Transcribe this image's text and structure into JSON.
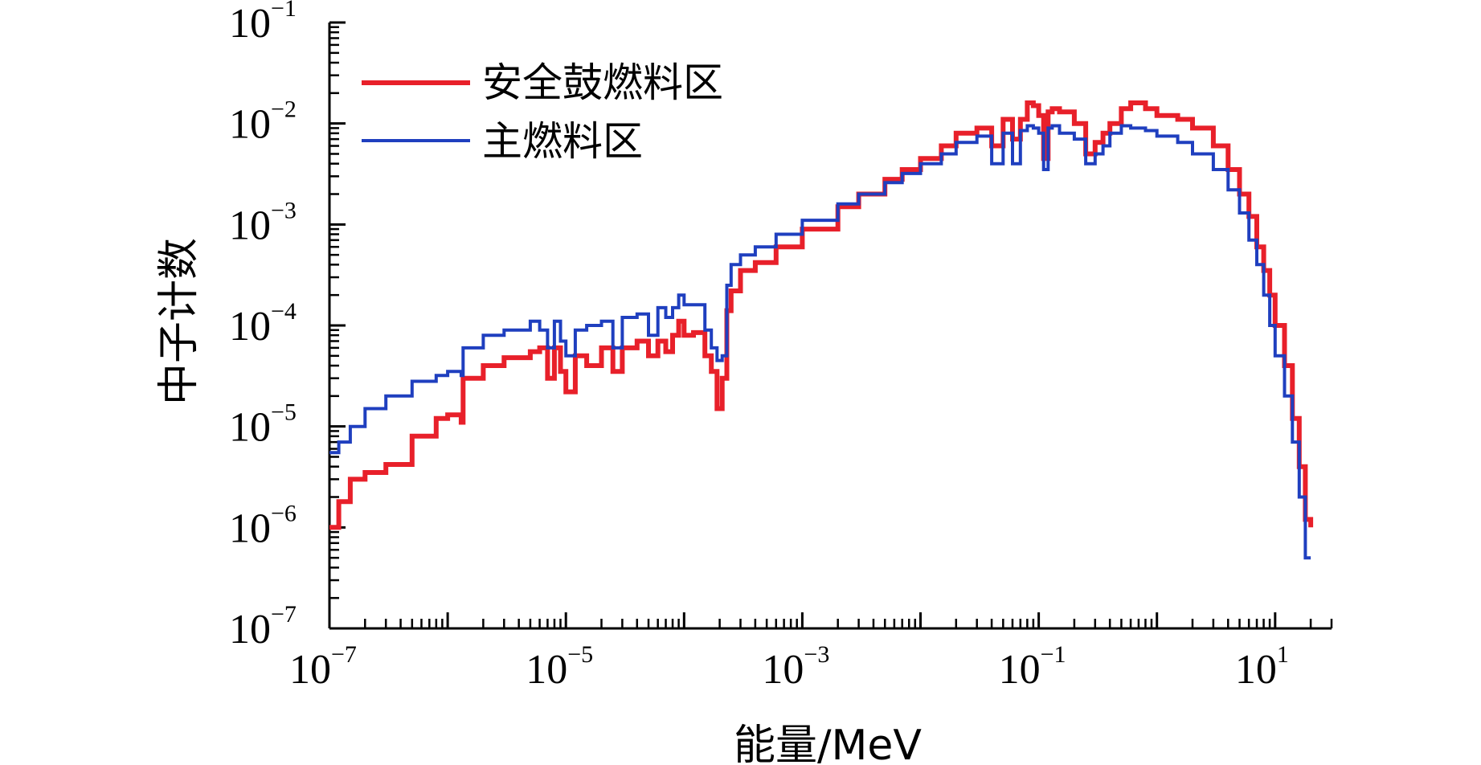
{
  "chart_data": {
    "type": "line",
    "xlabel": "能量/MeV",
    "ylabel": "中子计数",
    "xscale": "log",
    "yscale": "log",
    "xlim": [
      1e-07,
      30
    ],
    "ylim": [
      1e-07,
      0.1
    ],
    "grid": false,
    "legend_position": "top-left",
    "x_ticks": [
      {
        "base": "10",
        "exp": "−7",
        "value": 1e-07
      },
      {
        "base": "10",
        "exp": "−5",
        "value": 1e-05
      },
      {
        "base": "10",
        "exp": "−3",
        "value": 0.001
      },
      {
        "base": "10",
        "exp": "−1",
        "value": 0.1
      },
      {
        "base": "10",
        "exp": "1",
        "value": 10
      }
    ],
    "y_ticks": [
      {
        "base": "10",
        "exp": "−7",
        "value": 1e-07
      },
      {
        "base": "10",
        "exp": "−6",
        "value": 1e-06
      },
      {
        "base": "10",
        "exp": "−5",
        "value": 1e-05
      },
      {
        "base": "10",
        "exp": "−4",
        "value": 0.0001
      },
      {
        "base": "10",
        "exp": "−3",
        "value": 0.001
      },
      {
        "base": "10",
        "exp": "−2",
        "value": 0.01
      },
      {
        "base": "10",
        "exp": "−1",
        "value": 0.1
      }
    ],
    "series": [
      {
        "name": "安全鼓燃料区",
        "color": "#e8202a",
        "x": [
          1e-07,
          1.2e-07,
          1.5e-07,
          2e-07,
          3e-07,
          5e-07,
          8e-07,
          1e-06,
          1.3e-06,
          1.35e-06,
          2e-06,
          3e-06,
          5e-06,
          6e-06,
          7e-06,
          8e-06,
          9e-06,
          1e-05,
          1.2e-05,
          1.5e-05,
          2e-05,
          2.5e-05,
          3e-05,
          4e-05,
          5e-05,
          6e-05,
          7e-05,
          8e-05,
          9e-05,
          0.0001,
          0.00012,
          0.00015,
          0.00017,
          0.00019,
          0.00021,
          0.00023,
          0.00025,
          0.0003,
          0.0004,
          0.0006,
          0.001,
          0.002,
          0.003,
          0.005,
          0.007,
          0.01,
          0.015,
          0.02,
          0.03,
          0.04,
          0.05,
          0.06,
          0.07,
          0.08,
          0.09,
          0.1,
          0.11,
          0.12,
          0.13,
          0.15,
          0.2,
          0.25,
          0.3,
          0.35,
          0.4,
          0.5,
          0.6,
          0.8,
          1,
          1.5,
          2,
          3,
          4,
          5,
          6,
          7,
          8,
          9,
          10,
          12,
          14,
          16,
          18,
          20
        ],
        "y": [
          1e-06,
          1.8e-06,
          3e-06,
          3.5e-06,
          4.2e-06,
          8e-06,
          1.2e-05,
          1.3e-05,
          1.1e-05,
          3e-05,
          4e-05,
          4.8e-05,
          5.5e-05,
          6e-05,
          3e-05,
          6e-05,
          3.5e-05,
          2.2e-05,
          5e-05,
          4e-05,
          6e-05,
          3.5e-05,
          6e-05,
          7e-05,
          5e-05,
          7e-05,
          5.5e-05,
          8e-05,
          0.00011,
          8e-05,
          8.5e-05,
          5e-05,
          3.5e-05,
          1.5e-05,
          3e-05,
          0.00014,
          0.00022,
          0.00035,
          0.00042,
          0.0006,
          0.0009,
          0.0015,
          0.002,
          0.0028,
          0.0035,
          0.0045,
          0.006,
          0.008,
          0.009,
          0.006,
          0.011,
          0.007,
          0.011,
          0.016,
          0.015,
          0.012,
          0.0045,
          0.013,
          0.014,
          0.013,
          0.01,
          0.005,
          0.0065,
          0.008,
          0.01,
          0.014,
          0.016,
          0.014,
          0.012,
          0.011,
          0.009,
          0.006,
          0.0035,
          0.002,
          0.0012,
          0.0006,
          0.00035,
          0.0002,
          0.0001,
          4e-05,
          1.2e-05,
          4e-06,
          1.2e-06,
          1e-06
        ]
      },
      {
        "name": "主燃料区",
        "color": "#1f3fbf",
        "x": [
          1e-07,
          1.2e-07,
          1.5e-07,
          2e-07,
          3e-07,
          5e-07,
          8e-07,
          1e-06,
          1.3e-06,
          1.35e-06,
          2e-06,
          3e-06,
          5e-06,
          6e-06,
          7e-06,
          8e-06,
          9e-06,
          1e-05,
          1.2e-05,
          1.5e-05,
          2e-05,
          2.5e-05,
          3e-05,
          4e-05,
          5e-05,
          6e-05,
          7e-05,
          8e-05,
          9e-05,
          0.0001,
          0.00012,
          0.00015,
          0.00017,
          0.00019,
          0.00021,
          0.00023,
          0.00025,
          0.0003,
          0.0004,
          0.0006,
          0.001,
          0.002,
          0.003,
          0.005,
          0.007,
          0.01,
          0.015,
          0.02,
          0.03,
          0.04,
          0.05,
          0.06,
          0.07,
          0.08,
          0.09,
          0.1,
          0.11,
          0.12,
          0.13,
          0.15,
          0.2,
          0.25,
          0.3,
          0.35,
          0.4,
          0.5,
          0.6,
          0.8,
          1,
          1.5,
          2,
          3,
          4,
          5,
          6,
          7,
          8,
          9,
          10,
          12,
          14,
          16,
          18,
          20
        ],
        "y": [
          5.5e-06,
          7e-06,
          1e-05,
          1.5e-05,
          2e-05,
          2.8e-05,
          3.2e-05,
          3.5e-05,
          3.2e-05,
          6e-05,
          8e-05,
          9e-05,
          0.00011,
          9e-05,
          6e-05,
          0.00011,
          7e-05,
          5e-05,
          9e-05,
          0.0001,
          0.00011,
          6e-05,
          0.00012,
          0.00013,
          8e-05,
          0.00015,
          0.00012,
          0.00015,
          0.0002,
          0.00016,
          0.00016,
          9e-05,
          6e-05,
          4.5e-05,
          5e-05,
          0.00025,
          0.0004,
          0.0005,
          0.0006,
          0.0008,
          0.0011,
          0.0016,
          0.002,
          0.0026,
          0.0032,
          0.004,
          0.005,
          0.0065,
          0.0075,
          0.004,
          0.008,
          0.004,
          0.0085,
          0.0095,
          0.009,
          0.008,
          0.0035,
          0.009,
          0.0095,
          0.008,
          0.007,
          0.004,
          0.005,
          0.006,
          0.008,
          0.0095,
          0.009,
          0.0085,
          0.0075,
          0.0065,
          0.005,
          0.0035,
          0.0022,
          0.0013,
          0.0007,
          0.0004,
          0.0002,
          0.0001,
          5e-05,
          2e-05,
          7e-06,
          2e-06,
          5e-07,
          5e-07
        ]
      }
    ]
  }
}
